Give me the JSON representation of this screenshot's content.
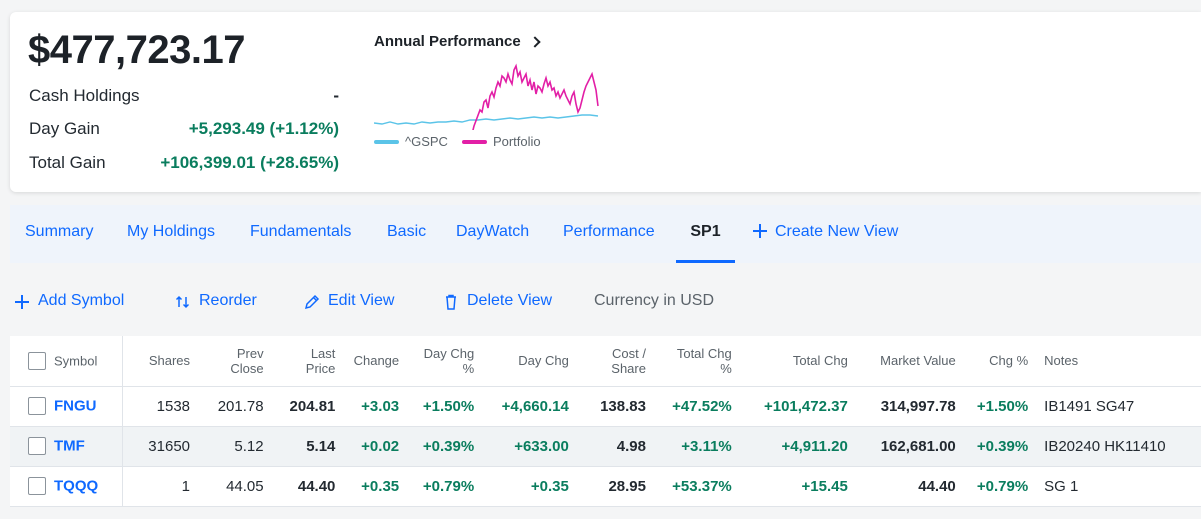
{
  "summary": {
    "total_value": "$477,723.17",
    "cash_label": "Cash Holdings",
    "cash_value": "-",
    "day_gain_label": "Day Gain",
    "day_gain_value": "+5,293.49 (+1.12%)",
    "total_gain_label": "Total Gain",
    "total_gain_value": "+106,399.01 (+28.65%)"
  },
  "performance": {
    "title": "Annual Performance",
    "icon": "chevron-right-icon",
    "legend": [
      {
        "name": "^GSPC",
        "color": "#5bc4e8"
      },
      {
        "name": "Portfolio",
        "color": "#e21fa6"
      }
    ]
  },
  "tabs": [
    {
      "label": "Summary",
      "active": false
    },
    {
      "label": "My Holdings",
      "active": false
    },
    {
      "label": "Fundamentals",
      "active": false
    },
    {
      "label": "Basic",
      "active": false
    },
    {
      "label": "DayWatch",
      "active": false
    },
    {
      "label": "Performance",
      "active": false
    },
    {
      "label": "SP1",
      "active": true
    },
    {
      "label": "Create New View",
      "active": false,
      "icon": "plus-icon"
    }
  ],
  "toolbar": {
    "add_symbol": "Add Symbol",
    "reorder": "Reorder",
    "edit_view": "Edit View",
    "delete_view": "Delete View",
    "currency": "Currency in USD"
  },
  "table": {
    "headers": {
      "symbol": "Symbol",
      "shares": "Shares",
      "prev_close_1": "Prev",
      "prev_close_2": "Close",
      "last_price_1": "Last",
      "last_price_2": "Price",
      "change": "Change",
      "day_chg_pct_1": "Day Chg",
      "day_chg_pct_2": "%",
      "day_chg": "Day Chg",
      "cost_share_1": "Cost /",
      "cost_share_2": "Share",
      "total_chg_pct_1": "Total Chg",
      "total_chg_pct_2": "%",
      "total_chg": "Total Chg",
      "market_value": "Market Value",
      "chg_pct": "Chg %",
      "notes": "Notes"
    },
    "rows": [
      {
        "symbol": "FNGU",
        "shares": "1538",
        "prev_close": "201.78",
        "last_price": "204.81",
        "change": "+3.03",
        "day_chg_pct": "+1.50%",
        "day_chg": "+4,660.14",
        "cost_share": "138.83",
        "total_chg_pct": "+47.52%",
        "total_chg": "+101,472.37",
        "market_value": "314,997.78",
        "chg_pct": "+1.50%",
        "notes": "IB1491 SG47"
      },
      {
        "symbol": "TMF",
        "shares": "31650",
        "prev_close": "5.12",
        "last_price": "5.14",
        "change": "+0.02",
        "day_chg_pct": "+0.39%",
        "day_chg": "+633.00",
        "cost_share": "4.98",
        "total_chg_pct": "+3.11%",
        "total_chg": "+4,911.20",
        "market_value": "162,681.00",
        "chg_pct": "+0.39%",
        "notes": "IB20240 HK11410"
      },
      {
        "symbol": "TQQQ",
        "shares": "1",
        "prev_close": "44.05",
        "last_price": "44.40",
        "change": "+0.35",
        "day_chg_pct": "+0.79%",
        "day_chg": "+0.35",
        "cost_share": "28.95",
        "total_chg_pct": "+53.37%",
        "total_chg": "+15.45",
        "market_value": "44.40",
        "chg_pct": "+0.79%",
        "notes": "SG 1"
      }
    ]
  },
  "colors": {
    "accent": "#0f69ff",
    "positive": "#0a7d5e",
    "tab_bar_bg": "#eff4fb"
  }
}
